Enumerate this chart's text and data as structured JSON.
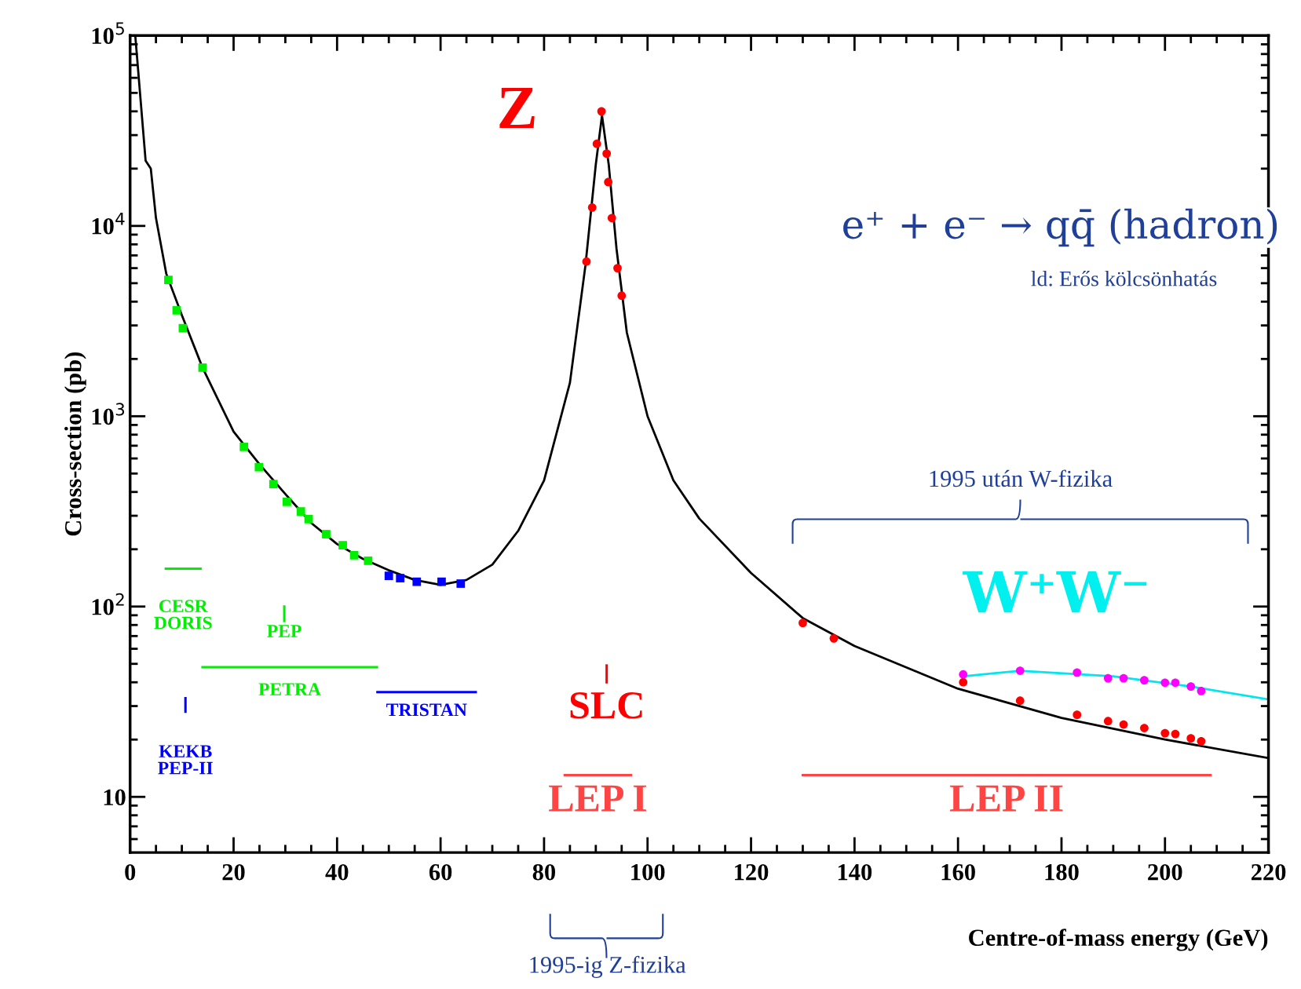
{
  "chart_data": {
    "type": "line",
    "xlabel": "Centre-of-mass energy (GeV)",
    "ylabel": "Cross-section (pb)",
    "log": "y",
    "xlim": [
      0,
      220
    ],
    "xticks": [
      0,
      20,
      40,
      60,
      80,
      100,
      120,
      140,
      160,
      180,
      200,
      220
    ],
    "ylim": [
      5.1,
      100000
    ],
    "yticks": [
      {
        "value": 10,
        "label": "10"
      },
      {
        "value": 100,
        "label": "10$^{2}$"
      },
      {
        "value": 1000,
        "label": "10$^{3}$"
      },
      {
        "value": 10000,
        "label": "10$^{4}$"
      },
      {
        "value": 100000,
        "label": "10$^{5}$"
      }
    ],
    "grid": false,
    "legend": false,
    "series": [
      {
        "color": "#000000",
        "x": [
          1,
          3,
          4,
          5,
          7,
          10,
          14,
          20,
          25,
          30,
          35,
          40,
          45,
          50,
          55,
          60,
          65,
          70,
          75,
          80,
          85,
          88,
          90,
          91.2,
          92.5,
          94,
          96,
          100,
          105,
          110,
          120,
          130,
          140,
          160,
          180,
          200,
          220
        ],
        "values": [
          100000,
          22000,
          20000,
          11000,
          5600,
          3400,
          1800,
          830,
          560,
          390,
          275,
          213,
          178,
          155,
          138,
          130,
          138,
          166,
          250,
          460,
          1500,
          6200,
          21000,
          38000,
          21000,
          7600,
          2750,
          1000,
          460,
          290,
          150,
          87,
          62,
          37,
          26,
          20,
          16
        ]
      },
      {
        "color": "#00e5ee",
        "x": [
          161,
          172,
          190,
          205,
          220
        ],
        "values": [
          43,
          46,
          43,
          38,
          32.5
        ]
      },
      {
        "type": "scatter",
        "color": "#00ee00",
        "marker": "square",
        "x": [
          7.4,
          9.0,
          10.2,
          14.0,
          22.0,
          24.9,
          27.7,
          30.3,
          33.0,
          34.5,
          37.9,
          41.1,
          43.3,
          46.0
        ],
        "values": [
          5200,
          3600,
          2900,
          1800,
          690,
          540,
          440,
          355,
          316,
          288,
          240,
          210,
          186,
          174
        ]
      },
      {
        "type": "scatter",
        "color": "#0000ff",
        "marker": "square",
        "x": [
          50.0,
          52.2,
          55.4,
          60.2,
          63.9
        ],
        "values": [
          145,
          141,
          135,
          135,
          132
        ]
      },
      {
        "type": "scatter",
        "color": "#ff0000",
        "marker": "circle",
        "x": [
          88.2,
          89.3,
          90.2,
          91.1,
          92.1,
          92.4,
          93.1,
          94.2,
          95.0
        ],
        "values": [
          6500,
          12500,
          27000,
          40000,
          24000,
          17000,
          11000,
          6000,
          4300
        ]
      },
      {
        "type": "scatter",
        "color": "#ff0000",
        "marker": "circle",
        "x": [
          130,
          136,
          161,
          172,
          183,
          189,
          192,
          196,
          200,
          202,
          205,
          207
        ],
        "values": [
          82,
          68,
          40,
          32,
          27,
          25,
          24,
          23,
          21.6,
          21.4,
          20.3,
          19.6
        ]
      },
      {
        "type": "scatter",
        "color": "#ff00ff",
        "marker": "circle",
        "x": [
          161,
          172,
          183,
          189,
          192,
          196,
          200,
          202,
          205,
          207
        ],
        "values": [
          44,
          46,
          45,
          42,
          42,
          41,
          39.8,
          39.8,
          38,
          36
        ]
      },
      {
        "name": "CESR\nDORIS",
        "color": "#00ee00",
        "x": [
          6.9,
          13.6
        ],
        "values": [
          158,
          158
        ]
      },
      {
        "name": "PEP",
        "color": "#00ee00",
        "x": [
          29.8,
          29.8
        ],
        "values": [
          84,
          100
        ]
      },
      {
        "name": "PETRA",
        "color": "#00ee00",
        "x": [
          14,
          47.7
        ],
        "values": [
          48,
          48
        ]
      },
      {
        "name": "TRISTAN",
        "color": "#0000ff",
        "x": [
          47.8,
          66.8
        ],
        "values": [
          35.5,
          35.5
        ]
      },
      {
        "name": "KEKB\nPEP-II",
        "color": "#0000ff",
        "x": [
          10.7,
          10.7
        ],
        "values": [
          28,
          33
        ]
      },
      {
        "name": "SLC",
        "color": "#ff0000",
        "x": [
          92.1,
          92.1
        ],
        "values": [
          40,
          49
        ]
      },
      {
        "name": "LEP I",
        "color": "#ff4444",
        "x": [
          84,
          96.8
        ],
        "values": [
          13,
          13
        ]
      },
      {
        "name": "LEP II",
        "color": "#ff4444",
        "x": [
          130,
          208.8
        ],
        "values": [
          13,
          13
        ]
      }
    ],
    "annotations": [
      "Z",
      "W⁺W⁻",
      "e⁺ + e⁻ → qq̄ (hadron)",
      "ld: Erős kölcsönhatás",
      "1995 után W-fizika",
      "1995-ig Z-fizika"
    ]
  }
}
